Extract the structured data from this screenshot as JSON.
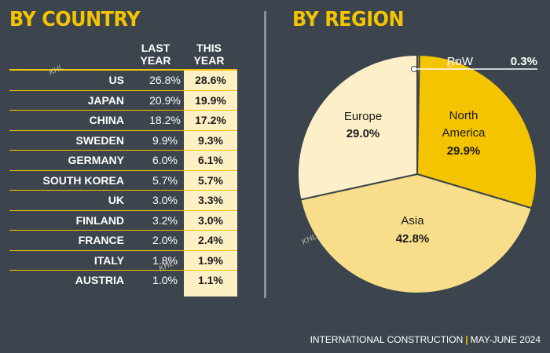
{
  "headings": {
    "country": "BY COUNTRY",
    "region": "BY REGION"
  },
  "table": {
    "col_last_1": "LAST",
    "col_last_2": "YEAR",
    "col_this_1": "THIS",
    "col_this_2": "YEAR",
    "rows": [
      {
        "country": "US",
        "last": "26.8%",
        "this": "28.6%"
      },
      {
        "country": "JAPAN",
        "last": "20.9%",
        "this": "19.9%"
      },
      {
        "country": "CHINA",
        "last": "18.2%",
        "this": "17.2%"
      },
      {
        "country": "SWEDEN",
        "last": "9.9%",
        "this": "9.3%"
      },
      {
        "country": "GERMANY",
        "last": "6.0%",
        "this": "6.1%"
      },
      {
        "country": "SOUTH KOREA",
        "last": "5.7%",
        "this": "5.7%"
      },
      {
        "country": "UK",
        "last": "3.0%",
        "this": "3.3%"
      },
      {
        "country": "FINLAND",
        "last": "3.2%",
        "this": "3.0%"
      },
      {
        "country": "FRANCE",
        "last": "2.0%",
        "this": "2.4%"
      },
      {
        "country": "ITALY",
        "last": "1.8%",
        "this": "1.9%"
      },
      {
        "country": "AUSTRIA",
        "last": "1.0%",
        "this": "1.1%"
      }
    ]
  },
  "chart_data": {
    "type": "pie",
    "title": "BY REGION",
    "slices": [
      {
        "label": "RoW",
        "value": 0.3,
        "display": "0.3%",
        "color": "#f5c400"
      },
      {
        "label": "North America",
        "value": 29.9,
        "display": "29.9%",
        "color": "#f5c400"
      },
      {
        "label": "Asia",
        "value": 42.8,
        "display": "42.8%",
        "color": "#f8de8a"
      },
      {
        "label": "Europe",
        "value": 29.0,
        "display": "29.0%",
        "color": "#fdf0c9"
      }
    ]
  },
  "pie_labels": {
    "north_america_1": "North",
    "north_america_2": "America",
    "north_america_value": "29.9%",
    "asia": "Asia",
    "asia_value": "42.8%",
    "europe": "Europe",
    "europe_value": "29.0%",
    "row": "RoW",
    "row_value": "0.3%"
  },
  "footer": {
    "publication": "INTERNATIONAL CONSTRUCTION",
    "issue": "MAY-JUNE 2024"
  },
  "watermark": "KHL"
}
